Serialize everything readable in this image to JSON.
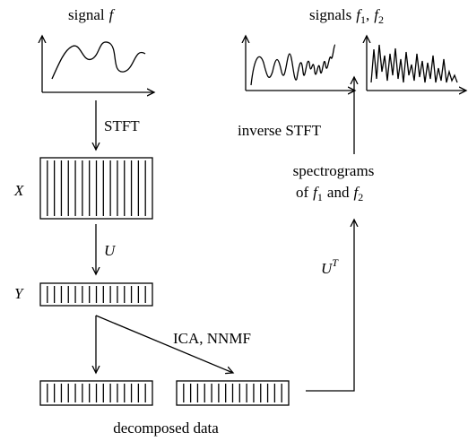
{
  "top_left": {
    "prefix": "signal",
    "var": "f"
  },
  "stft": "STFT",
  "x_label": "X",
  "u_label": "U",
  "y_label": "Y",
  "decomposition": "ICA, NNMF",
  "decomposed": "decomposed data",
  "u_transpose": {
    "var": "U",
    "sup": "T"
  },
  "spectrograms": {
    "line1": "spectrograms",
    "prefix": "of",
    "vars": [
      {
        "var": "f",
        "sub": "1"
      },
      {
        "var": "f",
        "sub": "2"
      }
    ],
    "joiner": "and"
  },
  "inverse": "inverse STFT",
  "top_right": {
    "prefix": "signals",
    "vars": [
      {
        "var": "f",
        "sub": "1"
      },
      {
        "var": "f",
        "sub": "2"
      }
    ],
    "separator": ","
  }
}
